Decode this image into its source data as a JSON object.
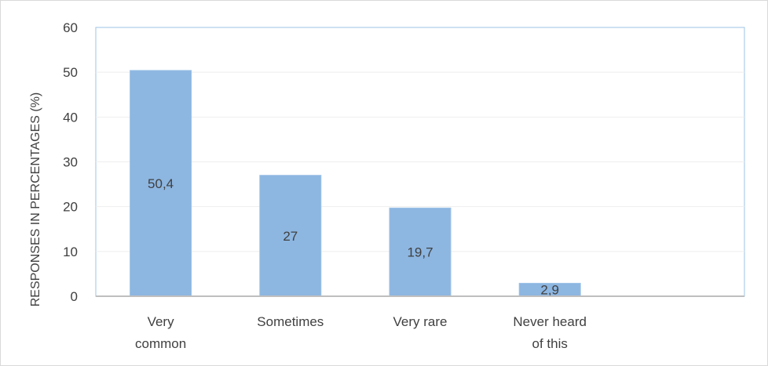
{
  "chart_data": {
    "type": "bar",
    "title": "",
    "xlabel": "",
    "ylabel": "RESPONSES IN PERCENTAGES (%)",
    "ylim": [
      0,
      60
    ],
    "yticks": [
      0,
      10,
      20,
      30,
      40,
      50,
      60
    ],
    "grid": true,
    "legend": "none",
    "categories": [
      [
        "Very",
        "common"
      ],
      [
        "Sometimes"
      ],
      [
        "Very rare"
      ],
      [
        "Never heard",
        "of this"
      ],
      [
        ""
      ]
    ],
    "values": [
      50.4,
      27,
      19.7,
      2.9,
      null
    ],
    "data_labels": [
      "50,4",
      "27",
      "19,7",
      "2,9",
      ""
    ],
    "bar_color": "#8db6e1",
    "bar_edge_color": "#9dc3e6",
    "axis_color": "#bfbfbf",
    "grid_color": "#eeeeee",
    "plot_border_color": "#9dc3e6"
  }
}
